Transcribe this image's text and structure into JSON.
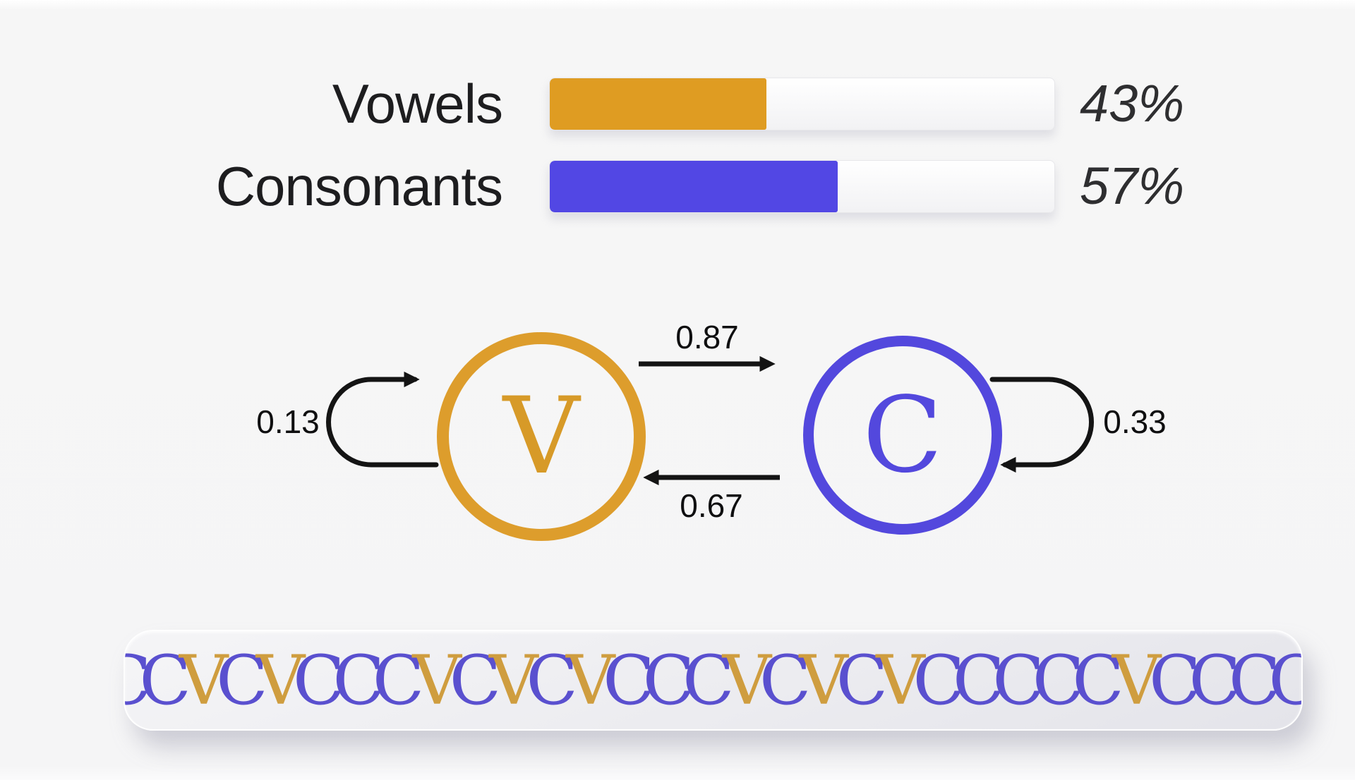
{
  "frequency_chart": {
    "rows": [
      {
        "label": "Vowels",
        "percent_label": "43%",
        "value": 43,
        "color": "#df9c22"
      },
      {
        "label": "Consonants",
        "percent_label": "57%",
        "value": 57,
        "color": "#5247e4"
      }
    ]
  },
  "markov_diagram": {
    "nodes": [
      {
        "id": "V",
        "letter": "V",
        "color": "#d79a28",
        "ring_color": "#dd9d2c"
      },
      {
        "id": "C",
        "letter": "C",
        "color": "#5348dd",
        "ring_color": "#5348dd"
      }
    ],
    "transitions": {
      "v_self": "0.13",
      "v_to_c": "0.87",
      "c_to_v": "0.67",
      "c_self": "0.33"
    }
  },
  "sequence_strip": {
    "letters": "CCVCVCCCVCVCVCCCVCVCVCCCCCVCCCCV",
    "vowel_color": "#cf9d3f",
    "consonant_color": "#5a50cf"
  }
}
